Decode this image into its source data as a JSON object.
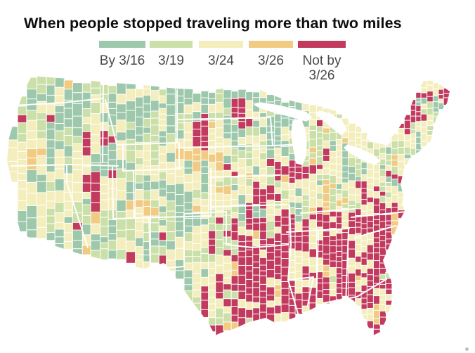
{
  "title": "When people stopped traveling more than two miles",
  "legend": {
    "items": [
      {
        "label": "By 3/16",
        "color": "#9dc8ac"
      },
      {
        "label": "3/19",
        "color": "#cbe0a8"
      },
      {
        "label": "3/24",
        "color": "#f4eebd"
      },
      {
        "label": "3/26",
        "color": "#f2cb82"
      },
      {
        "label": "Not by 3/26",
        "line1": "Not by",
        "line2": "3/26",
        "color": "#c23a5e"
      }
    ]
  },
  "map": {
    "background": "#ffffff",
    "county_border_color": "#ffffff",
    "state_border_color": "#ffffff"
  },
  "chart_data": {
    "type": "choropleth",
    "geography": "Contiguous United States, county level",
    "title": "When people stopped traveling more than two miles",
    "categories": [
      "By 3/16",
      "3/19",
      "3/24",
      "3/26",
      "Not by 3/26"
    ],
    "colors": [
      "#9dc8ac",
      "#cbe0a8",
      "#f4eebd",
      "#f2cb82",
      "#c23a5e"
    ],
    "approximate_share_of_map": [
      0.26,
      0.16,
      0.28,
      0.04,
      0.26
    ],
    "legend_position": "top, below title",
    "regional_pattern": {
      "west": "Mostly teal (By 3/16) and green (3/19) with pale-yellow patches; crimson clusters in southern Idaho/northern Utah, western New Mexico and west Texas; orange spots in Washington, Montana, Utah",
      "plains_upper_midwest": "Teal across Montana/North Dakota; Wyoming pale yellow; scattered crimson counties in Minnesota, the Dakotas, Kansas and Missouri",
      "midwest_northeast": "Pale yellow and light green dominate; orange cluster in Indiana; teal cluster around New York City; crimson pocket in eastern Maine and northern Vermont",
      "southeast": "Nearly solid crimson (Not by 3/26) from east Texas/Oklahoma through Louisiana, Arkansas, Mississippi, Tennessee, Alabama, Georgia, the Carolinas, southern Virginia and Florida, speckled with pale-yellow counties"
    }
  }
}
